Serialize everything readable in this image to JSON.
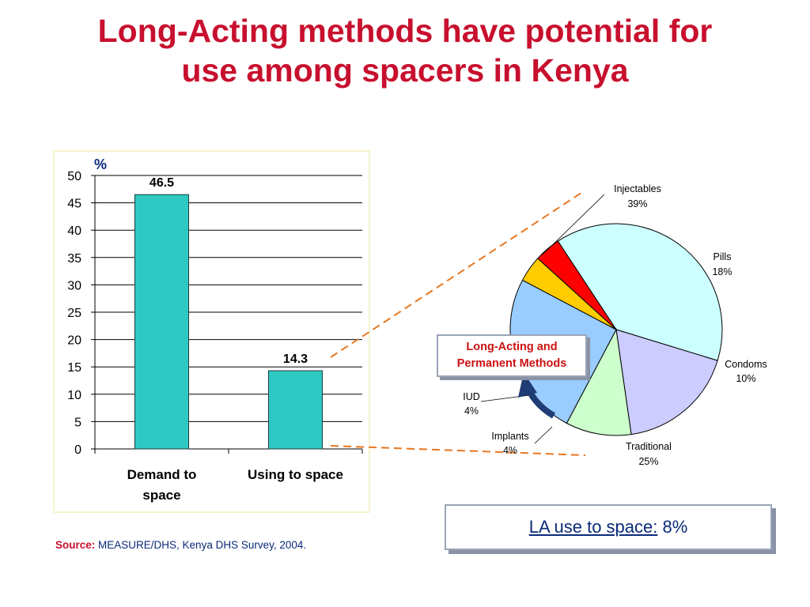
{
  "slide": {
    "title_line1": "Long-Acting methods have potential for",
    "title_line2": "use among spacers in Kenya",
    "source_label": "Source:",
    "source_text": "MEASURE/DHS, Kenya DHS Survey, 2004.",
    "la_box_line1": "Long-Acting and",
    "la_box_line2": "Permanent Methods",
    "la_use_label": "LA use to space:",
    "la_use_value": "8%"
  },
  "colors": {
    "title": "#c8102e",
    "bar_fill": "#2fc9c4",
    "connector": "#e87722",
    "arrow": "#1f3c74"
  },
  "chart_data": [
    {
      "type": "bar",
      "unit_label": "%",
      "categories": [
        "Demand to space",
        "Using to space"
      ],
      "category_lines": [
        [
          "Demand to",
          "space"
        ],
        [
          "Using to space"
        ]
      ],
      "values": [
        46.5,
        14.3
      ],
      "data_labels": [
        "46.5",
        "14.3"
      ],
      "ylim": [
        0,
        50
      ],
      "yticks": [
        0,
        5,
        10,
        15,
        20,
        25,
        30,
        35,
        40,
        45,
        50
      ],
      "grid": true
    },
    {
      "type": "pie",
      "slices": [
        {
          "name": "Injectables",
          "value": 39,
          "label": "39%",
          "color": "#ccffff"
        },
        {
          "name": "Pills",
          "value": 18,
          "label": "18%",
          "color": "#ccccff"
        },
        {
          "name": "Condoms",
          "value": 10,
          "label": "10%",
          "color": "#ccffcc"
        },
        {
          "name": "Traditional",
          "value": 25,
          "label": "25%",
          "color": "#99ccff"
        },
        {
          "name": "Implants",
          "value": 4,
          "label": "4%",
          "color": "#ffcc00"
        },
        {
          "name": "IUD",
          "value": 4,
          "label": "4%",
          "color": "#ff0000"
        }
      ]
    }
  ]
}
